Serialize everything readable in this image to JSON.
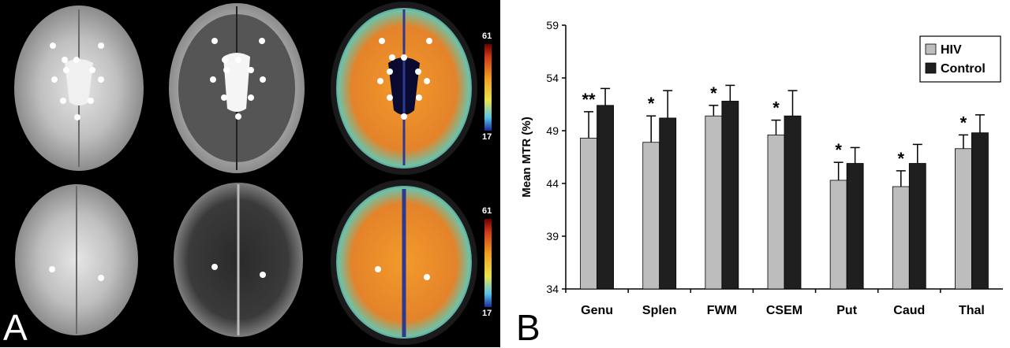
{
  "panels": {
    "a_label": "A",
    "b_label": "B"
  },
  "colorbar": {
    "max_label": "61",
    "min_label": "17"
  },
  "colors": {
    "hiv": "#bdbdbd",
    "control": "#1f1f1f",
    "axis": "#000000"
  },
  "chart_data": {
    "type": "bar",
    "categories": [
      "Genu",
      "Splen",
      "FWM",
      "CSEM",
      "Put",
      "Caud",
      "Thal"
    ],
    "series": [
      {
        "name": "HIV",
        "values": [
          48.3,
          47.9,
          50.4,
          48.6,
          44.3,
          43.7,
          47.3
        ],
        "errors": [
          2.5,
          2.5,
          1.0,
          1.4,
          1.7,
          1.5,
          1.3
        ]
      },
      {
        "name": "Control",
        "values": [
          51.4,
          50.2,
          51.8,
          50.4,
          45.9,
          45.9,
          48.8
        ],
        "errors": [
          1.6,
          2.6,
          1.5,
          2.4,
          1.5,
          1.8,
          1.7
        ]
      }
    ],
    "significance": [
      "**",
      "*",
      "*",
      "*",
      "*",
      "*",
      "*"
    ],
    "ylabel": "Mean MTR (%)",
    "xlabel": "",
    "ylim": [
      34,
      59
    ],
    "yticks": [
      34,
      39,
      44,
      49,
      54,
      59
    ],
    "legend_position": "top-right",
    "grid": false
  }
}
